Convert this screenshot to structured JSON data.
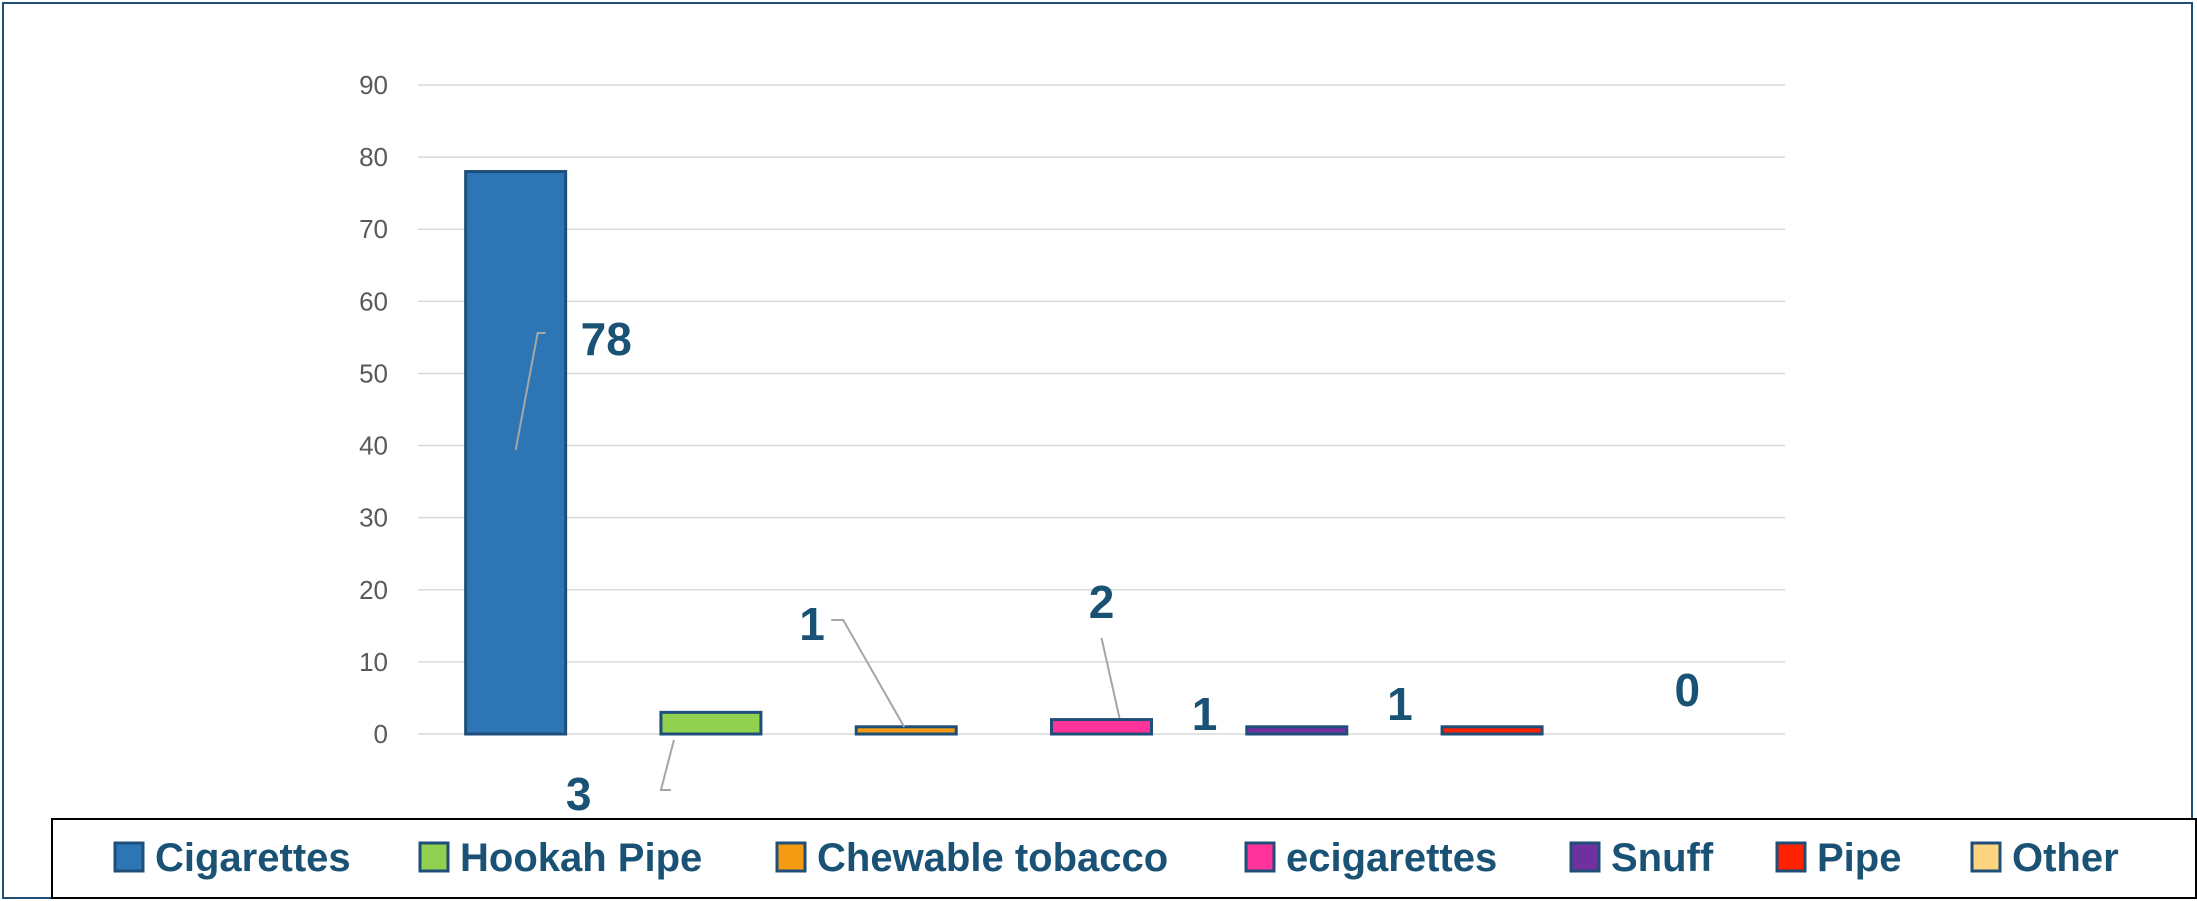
{
  "chart_data": {
    "type": "bar",
    "categories": [
      "Cigarettes",
      "Hookah Pipe",
      "Chewable tobacco",
      "ecigarettes",
      "Snuff",
      "Pipe",
      "Other"
    ],
    "values": [
      78,
      3,
      1,
      2,
      1,
      1,
      0
    ],
    "data_labels": [
      "78",
      "3",
      "1",
      "2",
      "1",
      "1",
      "0"
    ],
    "colors": [
      "#2e75b6",
      "#92d050",
      "#f39c12",
      "#ff3399",
      "#7030a0",
      "#ff2200",
      "#ffd480"
    ],
    "bar_border_color": "#1f4e79",
    "label_color": "#1a5276",
    "ylim": [
      0,
      90
    ],
    "yticks": [
      "0",
      "10",
      "20",
      "30",
      "40",
      "50",
      "60",
      "70",
      "80",
      "90"
    ],
    "grid": true,
    "legend_position": "bottom",
    "title": "",
    "xlabel": "",
    "ylabel": ""
  }
}
